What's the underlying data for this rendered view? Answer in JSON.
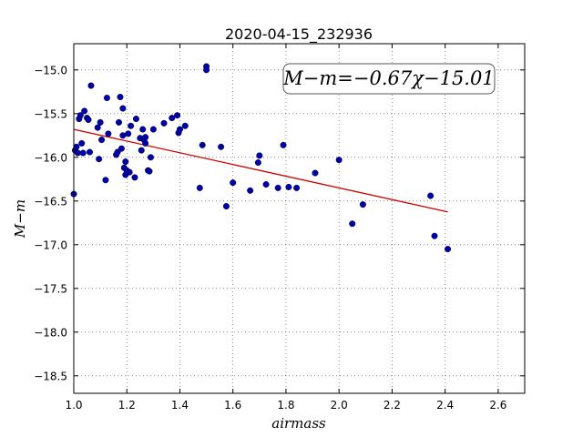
{
  "chart_data": {
    "type": "scatter",
    "title": "2020-04-15_232936",
    "xlabel": "airmass",
    "ylabel": "M−m",
    "xlim": [
      1.0,
      2.7
    ],
    "ylim": [
      -18.7,
      -14.7
    ],
    "y_inverted": false,
    "xticks": [
      "1.0",
      "1.2",
      "1.4",
      "1.6",
      "1.8",
      "2.0",
      "2.2",
      "2.4",
      "2.6"
    ],
    "xtick_values": [
      1.0,
      1.2,
      1.4,
      1.6,
      1.8,
      2.0,
      2.2,
      2.4,
      2.6
    ],
    "yticks": [
      "−15.0",
      "−15.5",
      "−16.0",
      "−16.5",
      "−17.0",
      "−17.5",
      "−18.0",
      "−18.5"
    ],
    "ytick_values": [
      -15.0,
      -15.5,
      -16.0,
      -16.5,
      -17.0,
      -17.5,
      -18.0,
      -18.5
    ],
    "grid": true,
    "annotation": "M−m=−0.67χ−15.01",
    "fit": {
      "slope": -0.67,
      "intercept": -15.01,
      "x_range": [
        1.0,
        2.41
      ],
      "color": "#cc0000"
    },
    "point_color": "#0000aa",
    "points": [
      [
        1.0,
        -16.42
      ],
      [
        1.005,
        -15.92
      ],
      [
        1.01,
        -15.88
      ],
      [
        1.015,
        -15.95
      ],
      [
        1.02,
        -15.56
      ],
      [
        1.025,
        -15.52
      ],
      [
        1.03,
        -15.84
      ],
      [
        1.035,
        -15.95
      ],
      [
        1.04,
        -15.47
      ],
      [
        1.05,
        -15.55
      ],
      [
        1.055,
        -15.57
      ],
      [
        1.06,
        -15.94
      ],
      [
        1.065,
        -15.18
      ],
      [
        1.09,
        -15.66
      ],
      [
        1.095,
        -16.02
      ],
      [
        1.1,
        -15.6
      ],
      [
        1.105,
        -15.8
      ],
      [
        1.12,
        -16.26
      ],
      [
        1.125,
        -15.32
      ],
      [
        1.13,
        -15.73
      ],
      [
        1.16,
        -15.97
      ],
      [
        1.165,
        -15.94
      ],
      [
        1.17,
        -15.6
      ],
      [
        1.175,
        -15.31
      ],
      [
        1.18,
        -15.9
      ],
      [
        1.185,
        -15.44
      ],
      [
        1.185,
        -15.75
      ],
      [
        1.19,
        -16.12
      ],
      [
        1.195,
        -16.2
      ],
      [
        1.195,
        -16.05
      ],
      [
        1.2,
        -16.15
      ],
      [
        1.205,
        -15.73
      ],
      [
        1.21,
        -16.17
      ],
      [
        1.215,
        -15.64
      ],
      [
        1.23,
        -16.23
      ],
      [
        1.235,
        -15.56
      ],
      [
        1.25,
        -15.78
      ],
      [
        1.255,
        -15.92
      ],
      [
        1.26,
        -15.68
      ],
      [
        1.265,
        -15.8
      ],
      [
        1.27,
        -15.77
      ],
      [
        1.27,
        -15.84
      ],
      [
        1.28,
        -16.15
      ],
      [
        1.285,
        -16.16
      ],
      [
        1.29,
        -16.0
      ],
      [
        1.3,
        -15.68
      ],
      [
        1.34,
        -15.61
      ],
      [
        1.37,
        -15.55
      ],
      [
        1.39,
        -15.52
      ],
      [
        1.395,
        -15.72
      ],
      [
        1.4,
        -15.68
      ],
      [
        1.42,
        -15.64
      ],
      [
        1.475,
        -16.35
      ],
      [
        1.485,
        -15.86
      ],
      [
        1.5,
        -14.96
      ],
      [
        1.5,
        -15.0
      ],
      [
        1.555,
        -15.88
      ],
      [
        1.575,
        -16.56
      ],
      [
        1.6,
        -16.29
      ],
      [
        1.665,
        -16.38
      ],
      [
        1.695,
        -16.06
      ],
      [
        1.7,
        -15.98
      ],
      [
        1.725,
        -16.31
      ],
      [
        1.77,
        -16.35
      ],
      [
        1.79,
        -15.86
      ],
      [
        1.81,
        -16.34
      ],
      [
        1.84,
        -16.35
      ],
      [
        1.91,
        -16.18
      ],
      [
        2.0,
        -16.03
      ],
      [
        2.05,
        -16.76
      ],
      [
        2.09,
        -16.54
      ],
      [
        2.345,
        -16.44
      ],
      [
        2.36,
        -16.9
      ],
      [
        2.41,
        -17.05
      ]
    ]
  }
}
